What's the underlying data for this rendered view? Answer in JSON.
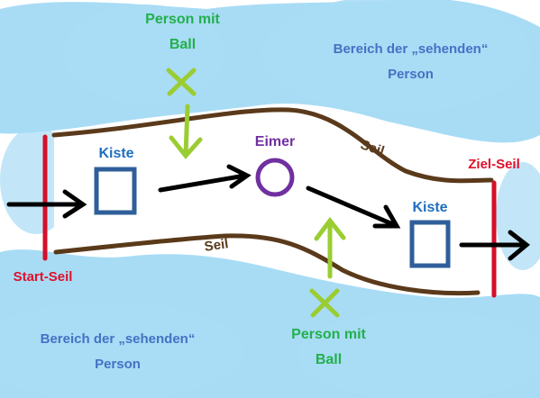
{
  "zone_top": {
    "line1": "Bereich der „sehenden“",
    "line2": "Person"
  },
  "zone_bottom": {
    "line1": "Bereich der „sehenden“",
    "line2": "Person"
  },
  "person_top": {
    "line1": "Person mit",
    "line2": "Ball"
  },
  "person_bottom": {
    "line1": "Person mit",
    "line2": "Ball"
  },
  "kiste_left": "Kiste",
  "kiste_right": "Kiste",
  "eimer": "Eimer",
  "seil_top": "Seil",
  "seil_bottom": "Seil",
  "start_rope": "Start-Seil",
  "goal_rope": "Ziel-Seil",
  "colors": {
    "sky": "#a8dcf5",
    "path": "#ffffff",
    "rope": "#5a3a1a",
    "start_goal": "#d4102a",
    "kiste": "#2f5f9a",
    "eimer": "#7030a0",
    "person": "#9acd32",
    "arrow": "#000000"
  }
}
